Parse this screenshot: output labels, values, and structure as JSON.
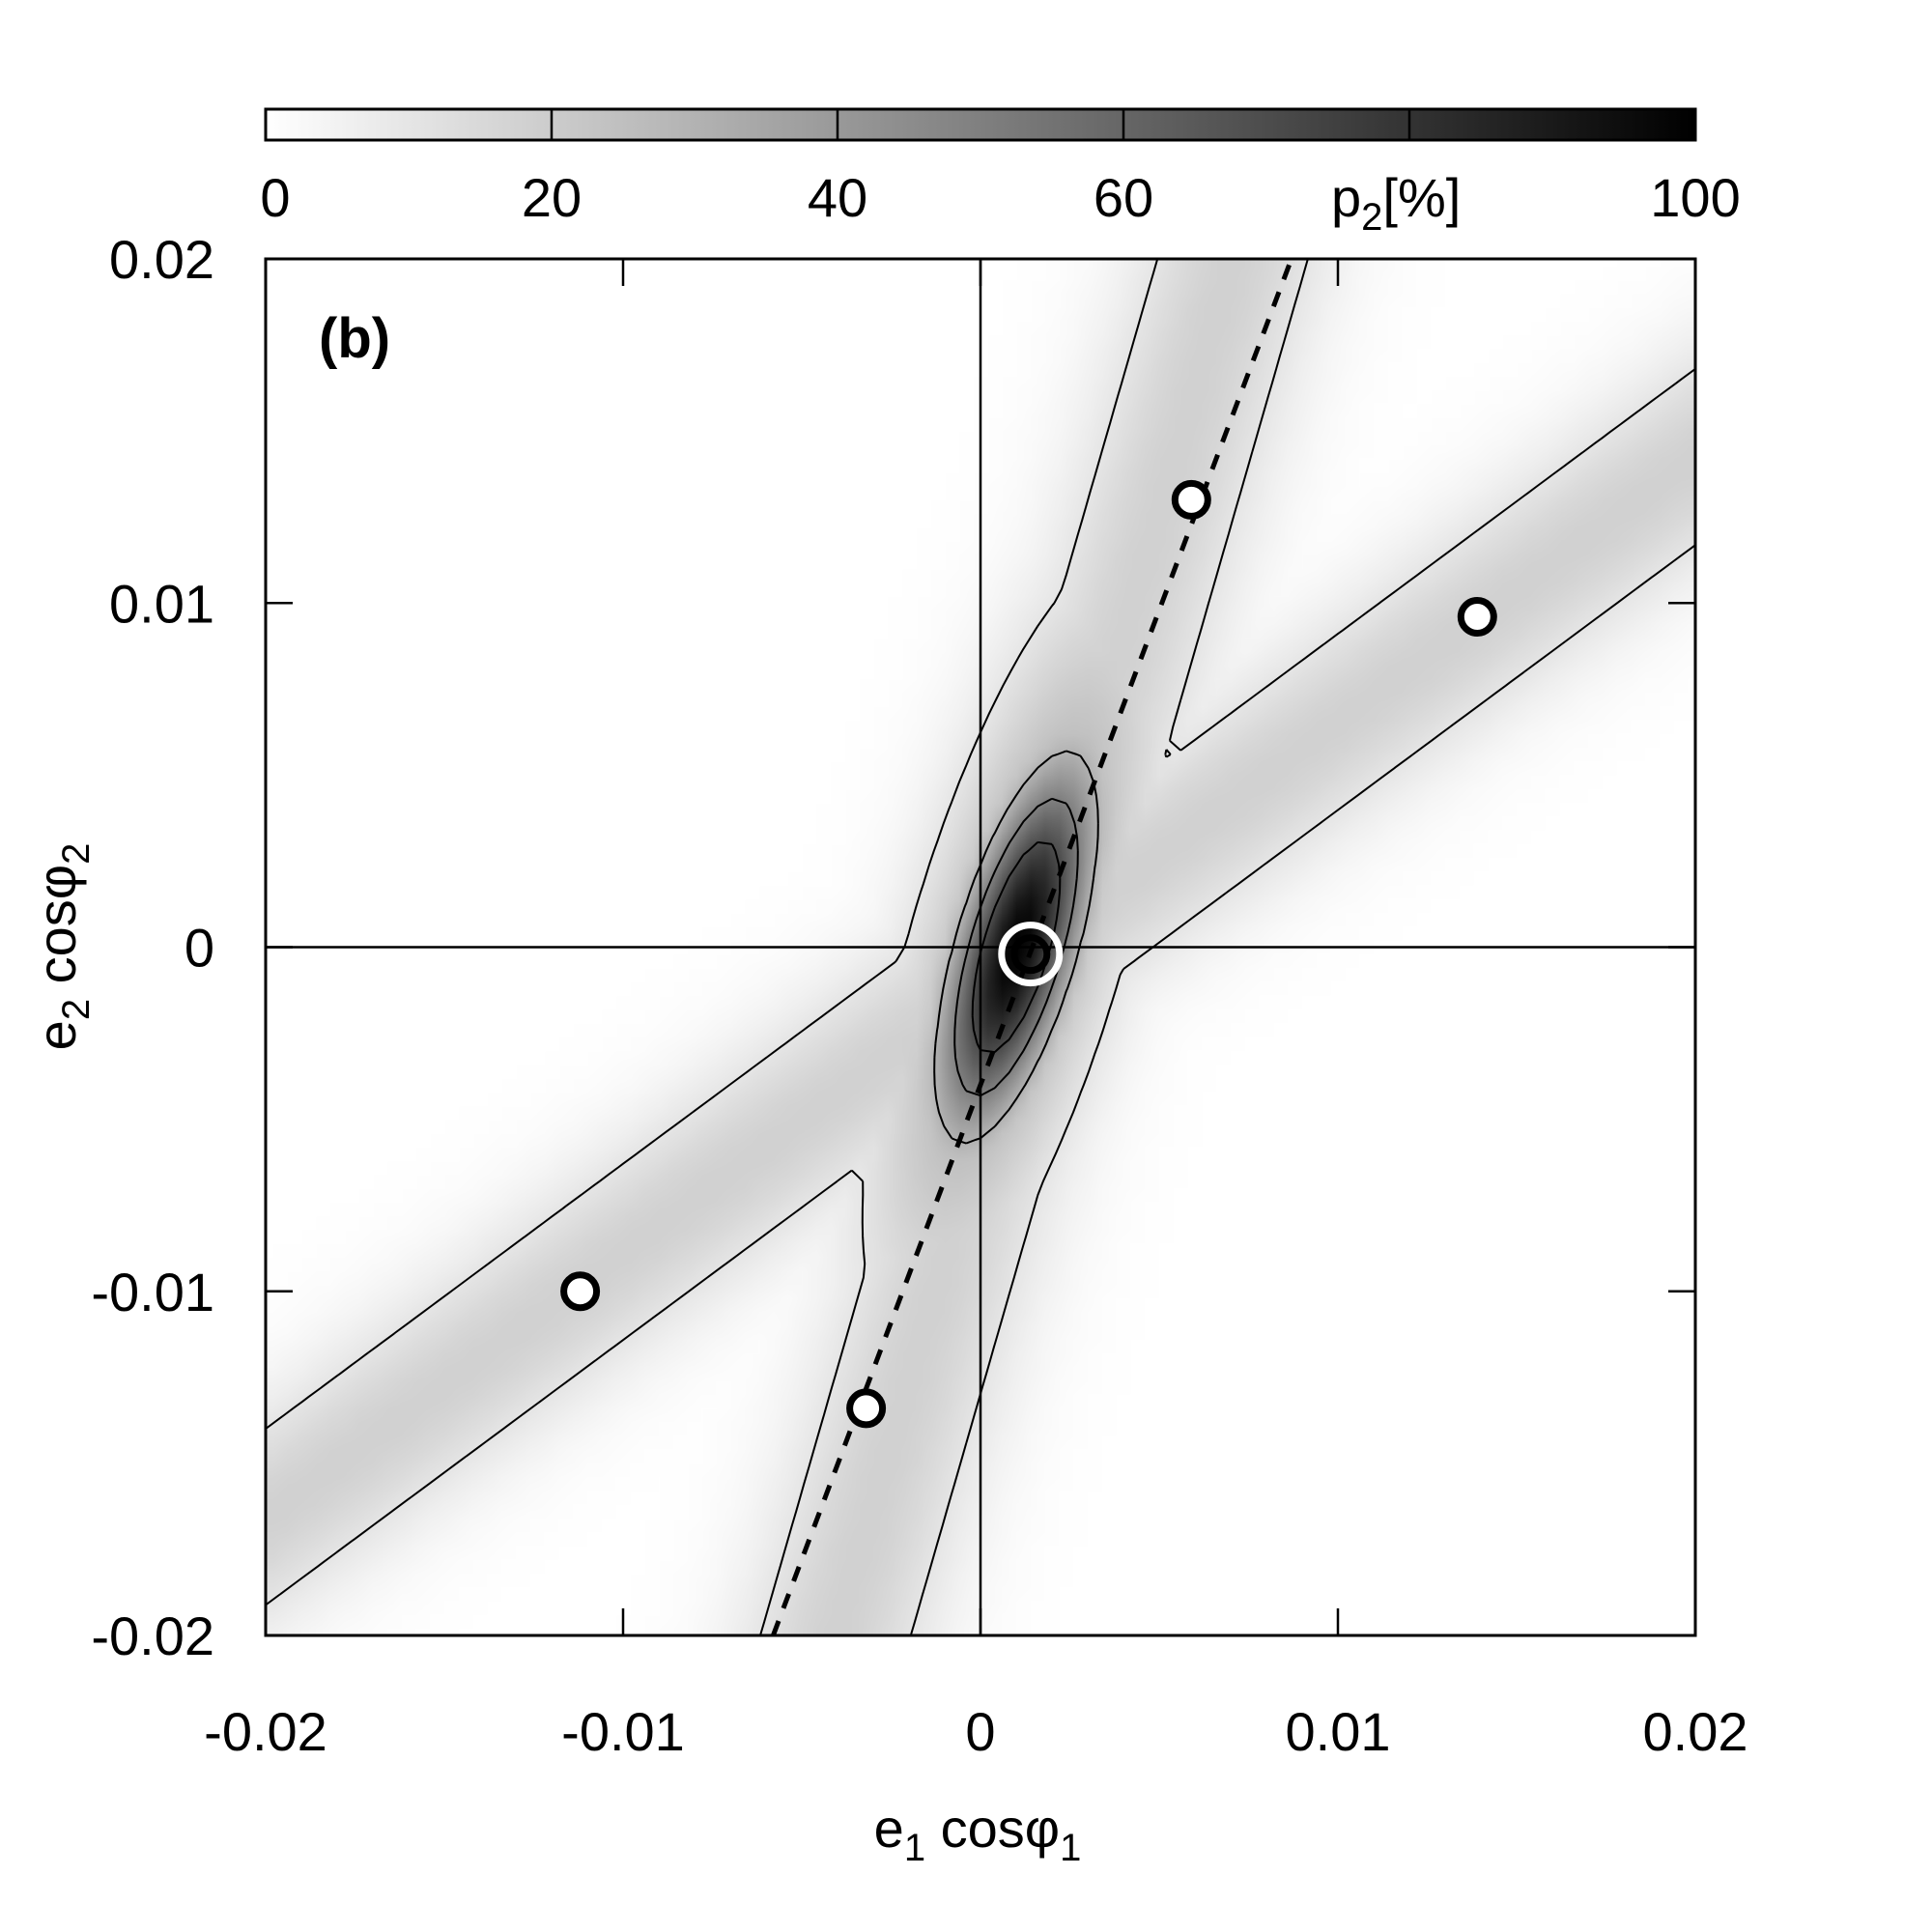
{
  "chart_data": {
    "type": "heatmap",
    "panel_label": "(b)",
    "xlabel": {
      "base": "e",
      "sub": "1",
      "rest": " cosφ",
      "sub2": "1"
    },
    "ylabel": {
      "base": "e",
      "sub": "2",
      "rest": " cosφ",
      "sub2": "2"
    },
    "xlim": [
      -0.02,
      0.02
    ],
    "ylim": [
      -0.02,
      0.02
    ],
    "x_ticks": [
      -0.02,
      -0.01,
      0,
      0.01,
      0.02
    ],
    "x_tick_labels": [
      "-0.02",
      "-0.01",
      "0",
      "0.01",
      "0.02"
    ],
    "y_ticks": [
      -0.02,
      -0.01,
      0,
      0.01,
      0.02
    ],
    "y_tick_labels": [
      "-0.02",
      "-0.01",
      "0",
      "0.01",
      "0.02"
    ],
    "zero_lines": true,
    "colorbar": {
      "label_base": "p",
      "label_sub": "2",
      "label_rest": "[%]",
      "range": [
        0,
        100
      ],
      "ticks": [
        0,
        20,
        40,
        60,
        80,
        100
      ],
      "tick_labels": [
        "0",
        "20",
        "40",
        "60",
        "",
        "100"
      ],
      "colormap": "white-to-black",
      "placement": "top"
    },
    "contour_levels": [
      10,
      30,
      50,
      70
    ],
    "bands": [
      {
        "through": [
          0.0015,
          0.0
        ],
        "slope": 3.6,
        "half_width": 0.0022
      },
      {
        "through": [
          0.0015,
          0.0
        ],
        "slope": 0.77,
        "half_width": 0.0022
      }
    ],
    "central_peak": {
      "center": [
        0.001,
        0.0
      ],
      "slope": 3.6
    },
    "dashed_line": {
      "points": [
        [
          -0.0058,
          -0.02
        ],
        [
          0.0087,
          0.02
        ]
      ]
    },
    "markers": [
      {
        "x": 0.0059,
        "y": 0.013,
        "style": "black-ring"
      },
      {
        "x": 0.0139,
        "y": 0.0096,
        "style": "black-ring"
      },
      {
        "x": -0.0112,
        "y": -0.01,
        "style": "black-ring"
      },
      {
        "x": -0.0032,
        "y": -0.0134,
        "style": "black-ring"
      },
      {
        "x": 0.0014,
        "y": -0.0002,
        "style": "white-ring-black-center"
      }
    ]
  }
}
